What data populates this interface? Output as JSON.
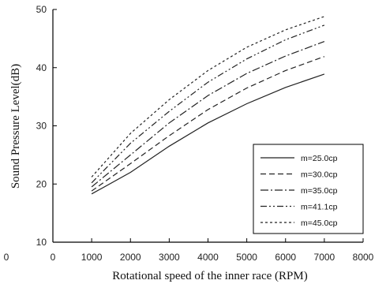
{
  "chart_data": {
    "type": "line",
    "xlabel": "Rotational speed of the inner race (RPM)",
    "ylabel": "Sound Pressure Level(dB)",
    "xlim": [
      0,
      8000
    ],
    "ylim": [
      10,
      50
    ],
    "x_ticks": [
      0,
      1000,
      2000,
      3000,
      4000,
      5000,
      6000,
      7000,
      8000
    ],
    "y_ticks": [
      10,
      20,
      30,
      40,
      50
    ],
    "stray_label": "0",
    "grid": false,
    "legend_position": "bottom-right",
    "x": [
      1000,
      2000,
      3000,
      4000,
      5000,
      6000,
      7000
    ],
    "series": [
      {
        "name": "m=25.0cp",
        "dash": "solid",
        "values": [
          18.3,
          22.0,
          26.5,
          30.5,
          33.8,
          36.6,
          38.9
        ]
      },
      {
        "name": "m=30.0cp",
        "dash": "dashed",
        "values": [
          18.8,
          23.5,
          28.3,
          32.8,
          36.5,
          39.5,
          41.9
        ]
      },
      {
        "name": "m=35.0cp",
        "dash": "dash-dot",
        "values": [
          19.5,
          25.0,
          30.5,
          35.2,
          39.0,
          42.0,
          44.5
        ]
      },
      {
        "name": "m=41.1cp",
        "dash": "dash-dot-dot",
        "values": [
          20.2,
          27.0,
          32.5,
          37.5,
          41.5,
          44.8,
          47.3
        ]
      },
      {
        "name": "m=45.0cp",
        "dash": "dotted",
        "values": [
          21.2,
          28.7,
          34.5,
          39.5,
          43.5,
          46.5,
          48.8
        ]
      }
    ]
  }
}
